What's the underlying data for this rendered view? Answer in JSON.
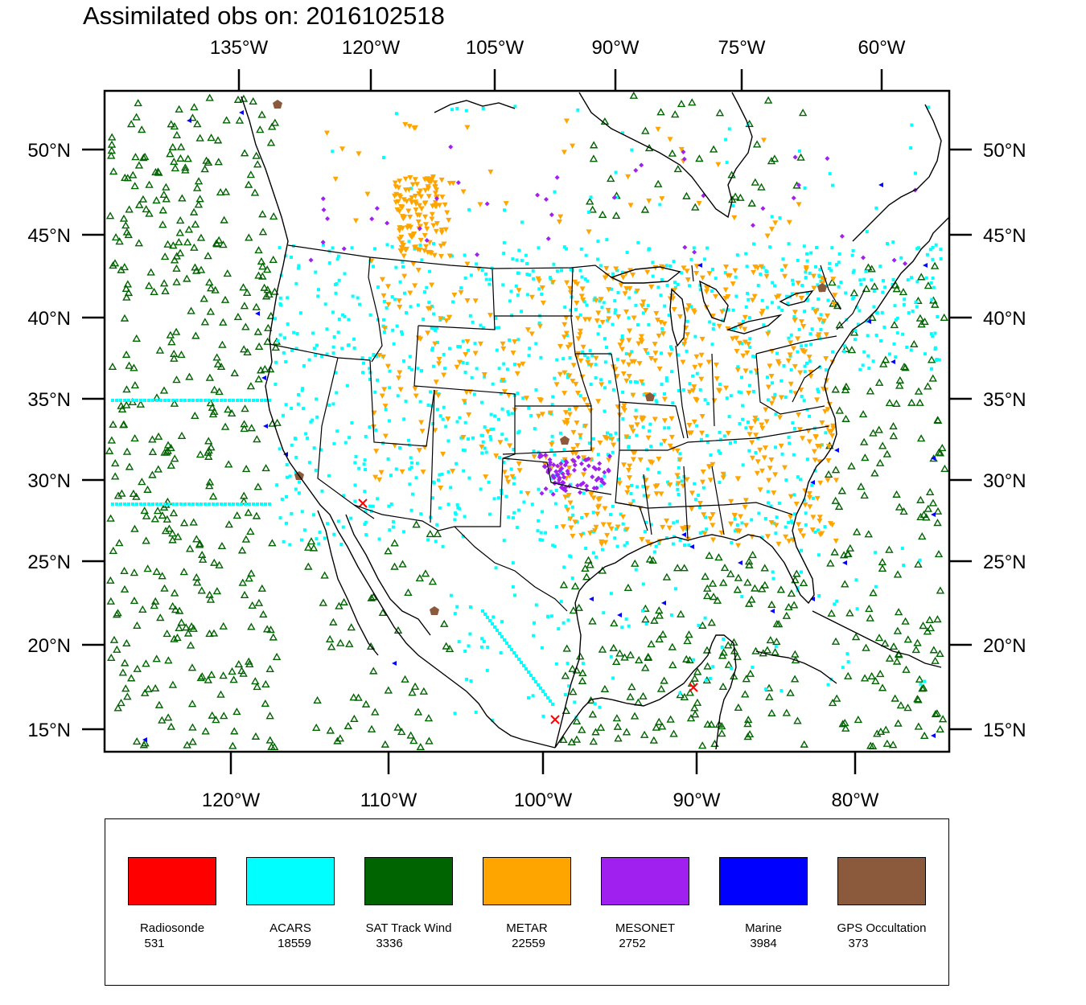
{
  "title": "Assimilated obs on: 2016102518",
  "top_axis_labels": [
    "135°W",
    "120°W",
    "105°W",
    "90°W",
    "75°W",
    "60°W"
  ],
  "bottom_axis_labels": [
    "120°W",
    "110°W",
    "100°W",
    "90°W",
    "80°W"
  ],
  "lat_labels": [
    "50°N",
    "45°N",
    "40°N",
    "35°N",
    "30°N",
    "25°N",
    "20°N",
    "15°N"
  ],
  "legend": [
    {
      "name": "Radiosonde",
      "count": "531",
      "color": "#ff0000",
      "marker": "x-mark-icon"
    },
    {
      "name": "ACARS",
      "count": "18559",
      "color": "#00ffff",
      "marker": "square-icon"
    },
    {
      "name": "SAT Track Wind",
      "count": "3336",
      "color": "#006400",
      "marker": "triangle-up-icon"
    },
    {
      "name": "METAR",
      "count": "22559",
      "color": "#ffa500",
      "marker": "triangle-down-icon"
    },
    {
      "name": "MESONET",
      "count": "2752",
      "color": "#a020f0",
      "marker": "diamond-icon"
    },
    {
      "name": "Marine",
      "count": "3984",
      "color": "#0000ff",
      "marker": "triangle-left-icon"
    },
    {
      "name": "GPS Occultation",
      "count": "373",
      "color": "#8b5a3c",
      "marker": "pentagon-icon"
    }
  ]
}
